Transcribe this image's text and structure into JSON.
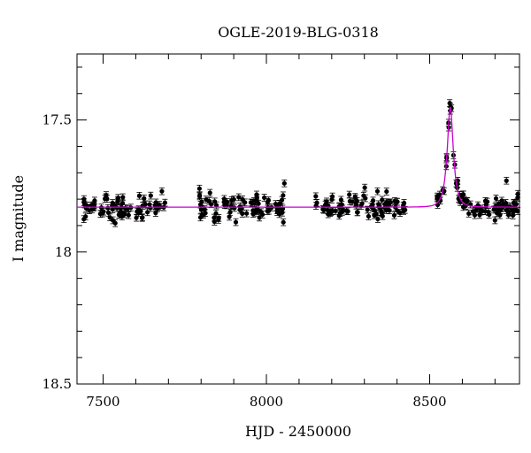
{
  "chart_data": {
    "type": "scatter",
    "title": "OGLE-2019-BLG-0318",
    "xlabel": "HJD - 2450000",
    "ylabel": "I magnitude",
    "xlim": [
      7420,
      8775
    ],
    "ylim": [
      18.5,
      17.25
    ],
    "y_inverted": true,
    "grid": false,
    "x_ticks": [
      7500,
      8000,
      8500
    ],
    "y_ticks": [
      17.5,
      18,
      18.5
    ],
    "x_tick_labels": [
      "7500",
      "8000",
      "8500"
    ],
    "y_tick_labels": [
      "17.5",
      "18",
      "18.5"
    ],
    "colors": {
      "points": "#000000",
      "model": "#cc00cc"
    },
    "model": {
      "name": "",
      "baseline": 17.83,
      "peak_time": 8563,
      "peak_mag": 17.45,
      "effective_width_days": 19,
      "samples_x": [
        7420,
        8400,
        8460,
        8500,
        8520,
        8535,
        8545,
        8555,
        8563,
        8571,
        8581,
        8591,
        8606,
        8626,
        8666,
        8775
      ],
      "samples_y": [
        17.83,
        17.83,
        17.82,
        17.8,
        17.77,
        17.7,
        17.6,
        17.49,
        17.45,
        17.49,
        17.6,
        17.7,
        17.77,
        17.8,
        17.82,
        17.83
      ]
    },
    "series": [
      {
        "seasons": [
          {
            "x_start": 7440,
            "x_end": 7690,
            "n": 75,
            "mean_mag": 17.83,
            "scatter": 0.026
          },
          {
            "x_start": 7795,
            "x_end": 8060,
            "n": 80,
            "mean_mag": 17.83,
            "scatter": 0.026
          },
          {
            "x_start": 8150,
            "x_end": 8430,
            "n": 85,
            "mean_mag": 17.83,
            "scatter": 0.024
          },
          {
            "x_start": 8520,
            "x_end": 8770,
            "n": 95,
            "mean_mag": 17.83,
            "scatter": 0.02
          }
        ],
        "error_bar_mag": 0.013,
        "outliers": [
          {
            "x": 7680,
            "y": 17.77
          },
          {
            "x": 8055,
            "y": 17.74
          },
          {
            "x": 7795,
            "y": 17.76
          },
          {
            "x": 8340,
            "y": 17.77
          },
          {
            "x": 8735,
            "y": 17.73
          },
          {
            "x": 8770,
            "y": 17.78
          },
          {
            "x": 8700,
            "y": 17.88
          },
          {
            "x": 7530,
            "y": 17.88
          },
          {
            "x": 7840,
            "y": 17.87
          }
        ]
      }
    ]
  }
}
